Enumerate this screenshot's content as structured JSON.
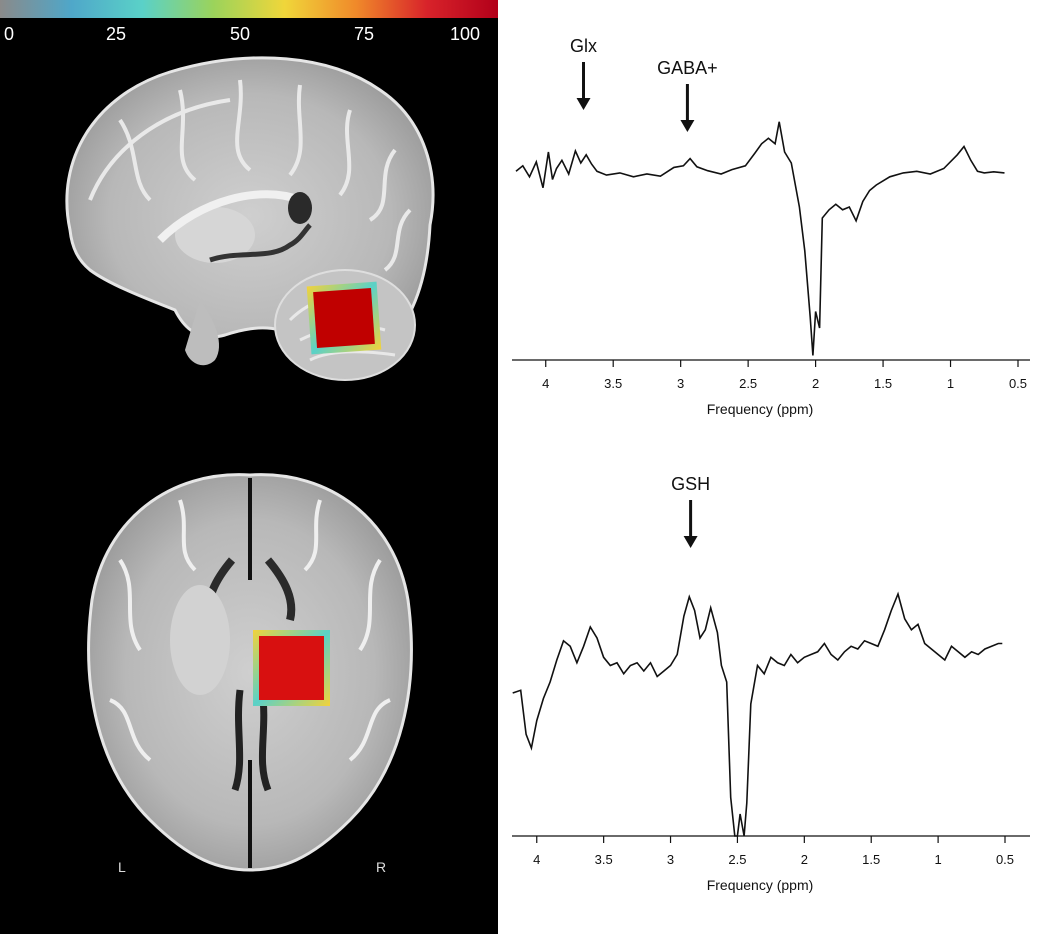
{
  "colorbar": {
    "ticks": [
      "0",
      "25",
      "50",
      "75",
      "100"
    ],
    "gradient": [
      "#8a8a8a",
      "#4fa7c9",
      "#5ad1c8",
      "#9bd35b",
      "#f0d63a",
      "#f08a2a",
      "#d8232a",
      "#b2001a"
    ]
  },
  "brain_panels": {
    "sagittal": {
      "voi_color": "#c00000"
    },
    "axial": {
      "left_label": "L",
      "right_label": "R",
      "voi_color": "#d81010"
    }
  },
  "chart_data": [
    {
      "type": "line",
      "xlabel": "Frequency (ppm)",
      "xlim": [
        4.25,
        0.5
      ],
      "xticks": [
        "4",
        "3.5",
        "3",
        "2.5",
        "2",
        "1.5",
        "1",
        "0.5"
      ],
      "annotations": [
        {
          "label": "Glx",
          "x": 3.72
        },
        {
          "label": "GABA+",
          "x": 2.95
        }
      ],
      "series": [
        {
          "x": [
            4.22,
            4.17,
            4.12,
            4.07,
            4.02,
            3.98,
            3.95,
            3.92,
            3.88,
            3.83,
            3.78,
            3.74,
            3.7,
            3.66,
            3.62,
            3.55,
            3.45,
            3.35,
            3.25,
            3.15,
            3.05,
            2.98,
            2.93,
            2.88,
            2.8,
            2.7,
            2.62,
            2.52,
            2.45,
            2.4,
            2.35,
            2.3,
            2.27,
            2.23,
            2.18,
            2.12,
            2.08,
            2.04,
            2.02,
            2.0,
            1.97,
            1.95,
            1.9,
            1.85,
            1.8,
            1.75,
            1.7,
            1.65,
            1.6,
            1.55,
            1.45,
            1.35,
            1.25,
            1.15,
            1.05,
            0.95,
            0.9,
            0.85,
            0.8,
            0.75,
            0.68,
            0.6
          ],
          "y": [
            0.25,
            0.35,
            0.15,
            0.42,
            -0.05,
            0.6,
            0.1,
            0.3,
            0.45,
            0.2,
            0.62,
            0.4,
            0.55,
            0.38,
            0.25,
            0.18,
            0.22,
            0.15,
            0.2,
            0.16,
            0.32,
            0.35,
            0.48,
            0.33,
            0.26,
            0.2,
            0.28,
            0.35,
            0.58,
            0.75,
            0.85,
            0.75,
            1.15,
            0.6,
            0.4,
            -0.4,
            -1.2,
            -2.4,
            -3.1,
            -2.3,
            -2.6,
            -0.6,
            -0.45,
            -0.35,
            -0.45,
            -0.4,
            -0.65,
            -0.3,
            -0.1,
            0.0,
            0.15,
            0.22,
            0.25,
            0.2,
            0.3,
            0.55,
            0.7,
            0.45,
            0.25,
            0.22,
            0.24,
            0.22
          ]
        }
      ]
    },
    {
      "type": "line",
      "xlabel": "Frequency (ppm)",
      "xlim": [
        4.2,
        0.5
      ],
      "xticks": [
        "4",
        "3.5",
        "3",
        "2.5",
        "2",
        "1.5",
        "1",
        "0.5"
      ],
      "annotations": [
        {
          "label": "GSH",
          "x": 2.85
        }
      ],
      "series": [
        {
          "x": [
            4.18,
            4.12,
            4.08,
            4.04,
            4.0,
            3.95,
            3.9,
            3.85,
            3.8,
            3.75,
            3.7,
            3.65,
            3.6,
            3.55,
            3.5,
            3.45,
            3.4,
            3.35,
            3.3,
            3.25,
            3.2,
            3.15,
            3.1,
            3.05,
            3.0,
            2.95,
            2.9,
            2.86,
            2.82,
            2.78,
            2.74,
            2.7,
            2.65,
            2.62,
            2.58,
            2.55,
            2.52,
            2.5,
            2.48,
            2.45,
            2.43,
            2.4,
            2.35,
            2.3,
            2.25,
            2.2,
            2.15,
            2.1,
            2.05,
            2.0,
            1.95,
            1.9,
            1.85,
            1.8,
            1.75,
            1.7,
            1.65,
            1.6,
            1.55,
            1.5,
            1.45,
            1.4,
            1.35,
            1.3,
            1.25,
            1.2,
            1.15,
            1.1,
            1.05,
            1.0,
            0.95,
            0.9,
            0.85,
            0.8,
            0.75,
            0.7,
            0.65,
            0.6,
            0.55,
            0.52
          ],
          "y": [
            -0.6,
            -0.55,
            -1.35,
            -1.6,
            -1.1,
            -0.7,
            -0.4,
            0.0,
            0.35,
            0.25,
            -0.05,
            0.25,
            0.6,
            0.4,
            0.05,
            -0.1,
            -0.05,
            -0.25,
            -0.1,
            -0.05,
            -0.2,
            -0.05,
            -0.3,
            -0.2,
            -0.1,
            0.1,
            0.8,
            1.15,
            0.9,
            0.4,
            0.55,
            0.95,
            0.5,
            -0.1,
            -0.4,
            -2.5,
            -3.2,
            -3.2,
            -2.8,
            -3.3,
            -2.6,
            -0.8,
            -0.1,
            -0.25,
            0.05,
            -0.05,
            -0.1,
            0.1,
            -0.05,
            0.05,
            0.1,
            0.15,
            0.3,
            0.1,
            0.0,
            0.15,
            0.25,
            0.2,
            0.35,
            0.3,
            0.25,
            0.55,
            0.9,
            1.2,
            0.75,
            0.55,
            0.65,
            0.3,
            0.2,
            0.1,
            0.0,
            0.25,
            0.15,
            0.05,
            0.15,
            0.1,
            0.2,
            0.25,
            0.3,
            0.3
          ]
        }
      ]
    }
  ]
}
